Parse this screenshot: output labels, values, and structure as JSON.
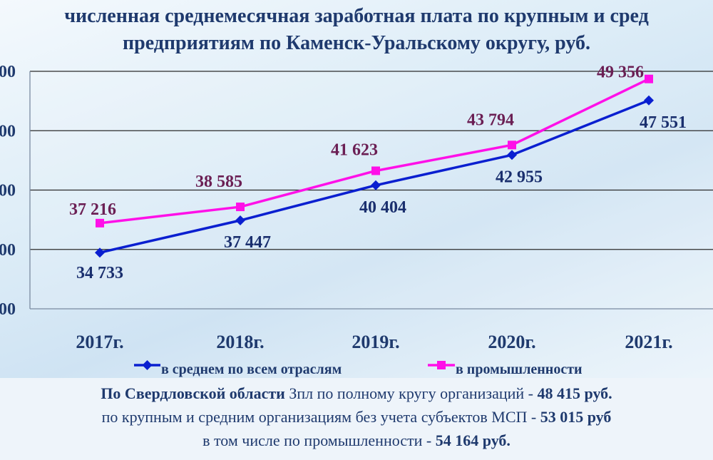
{
  "chart_data": {
    "type": "line",
    "title_lines": [
      "численная среднемесячная заработная плата по крупным и сред",
      "предприятиям по Каменск-Уральскому округу, руб."
    ],
    "categories": [
      "2017г.",
      "2018г.",
      "2019г.",
      "2020г.",
      "2021г."
    ],
    "y_tick_labels": [
      "00",
      "00",
      "00",
      "00",
      "00"
    ],
    "ylim": [
      30000,
      50000
    ],
    "grid": true,
    "legend_position": "bottom",
    "series": [
      {
        "name": "в среднем по всем отраслям",
        "values": [
          34733,
          37447,
          40404,
          42955,
          47551
        ],
        "labels": [
          "34 733",
          "37 447",
          "40 404",
          "42 955",
          "47 551"
        ],
        "color": "#0a1fd0",
        "label_color": "#1a2f6e",
        "marker": "diamond"
      },
      {
        "name": "в промышленности",
        "values": [
          37216,
          38585,
          41623,
          43794,
          49356
        ],
        "labels": [
          "37 216",
          "38 585",
          "41 623",
          "43 794",
          "49 356"
        ],
        "color": "#ff10e8",
        "label_color": "#6b1f54",
        "marker": "square"
      }
    ]
  },
  "footer": {
    "line1_bold": "По Свердловской области",
    "line1_text": " Зпл по полному кругу организаций - ",
    "line1_value": "48 415 руб.",
    "line2_text": "по крупным и средним организациям без учета субъектов МСП - ",
    "line2_value": "53 015 руб",
    "line3_text": "в том числе по промышленности - ",
    "line3_value": "54 164 руб."
  }
}
